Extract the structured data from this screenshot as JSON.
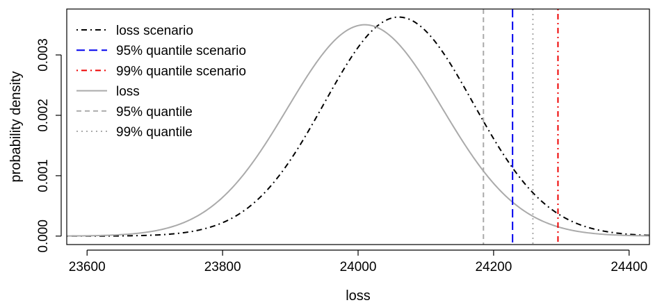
{
  "chart_data": {
    "type": "line",
    "title": "",
    "xlabel": "loss",
    "ylabel": "probability density",
    "xlim": [
      23570,
      24430
    ],
    "ylim": [
      -0.00014,
      0.00376
    ],
    "x_ticks": [
      23600,
      23800,
      24000,
      24200,
      24400
    ],
    "x_tick_labels": [
      "23600",
      "23800",
      "24000",
      "24200",
      "24400"
    ],
    "y_ticks": [
      0,
      0.001,
      0.002,
      0.003
    ],
    "y_tick_labels": [
      "0.000",
      "0.001",
      "0.002",
      "0.003"
    ],
    "grid": false,
    "legend_position": "top-left",
    "series": [
      {
        "name": "loss scenario",
        "kind": "curve",
        "distribution": "normal",
        "mean": 24060,
        "sd": 110,
        "color": "#000000",
        "style": "dotdash"
      },
      {
        "name": "95% quantile scenario",
        "kind": "vline",
        "x": 24228,
        "color": "#0000ee",
        "style": "longdash"
      },
      {
        "name": "99% quantile scenario",
        "kind": "vline",
        "x": 24295,
        "color": "#ee0000",
        "style": "dotdash"
      },
      {
        "name": "loss",
        "kind": "curve",
        "distribution": "normal",
        "mean": 24010,
        "sd": 114,
        "color": "#aaaaaa",
        "style": "solid"
      },
      {
        "name": "95% quantile",
        "kind": "vline",
        "x": 24185,
        "color": "#aaaaaa",
        "style": "dashed"
      },
      {
        "name": "99% quantile",
        "kind": "vline",
        "x": 24258,
        "color": "#aaaaaa",
        "style": "dotted"
      }
    ]
  }
}
